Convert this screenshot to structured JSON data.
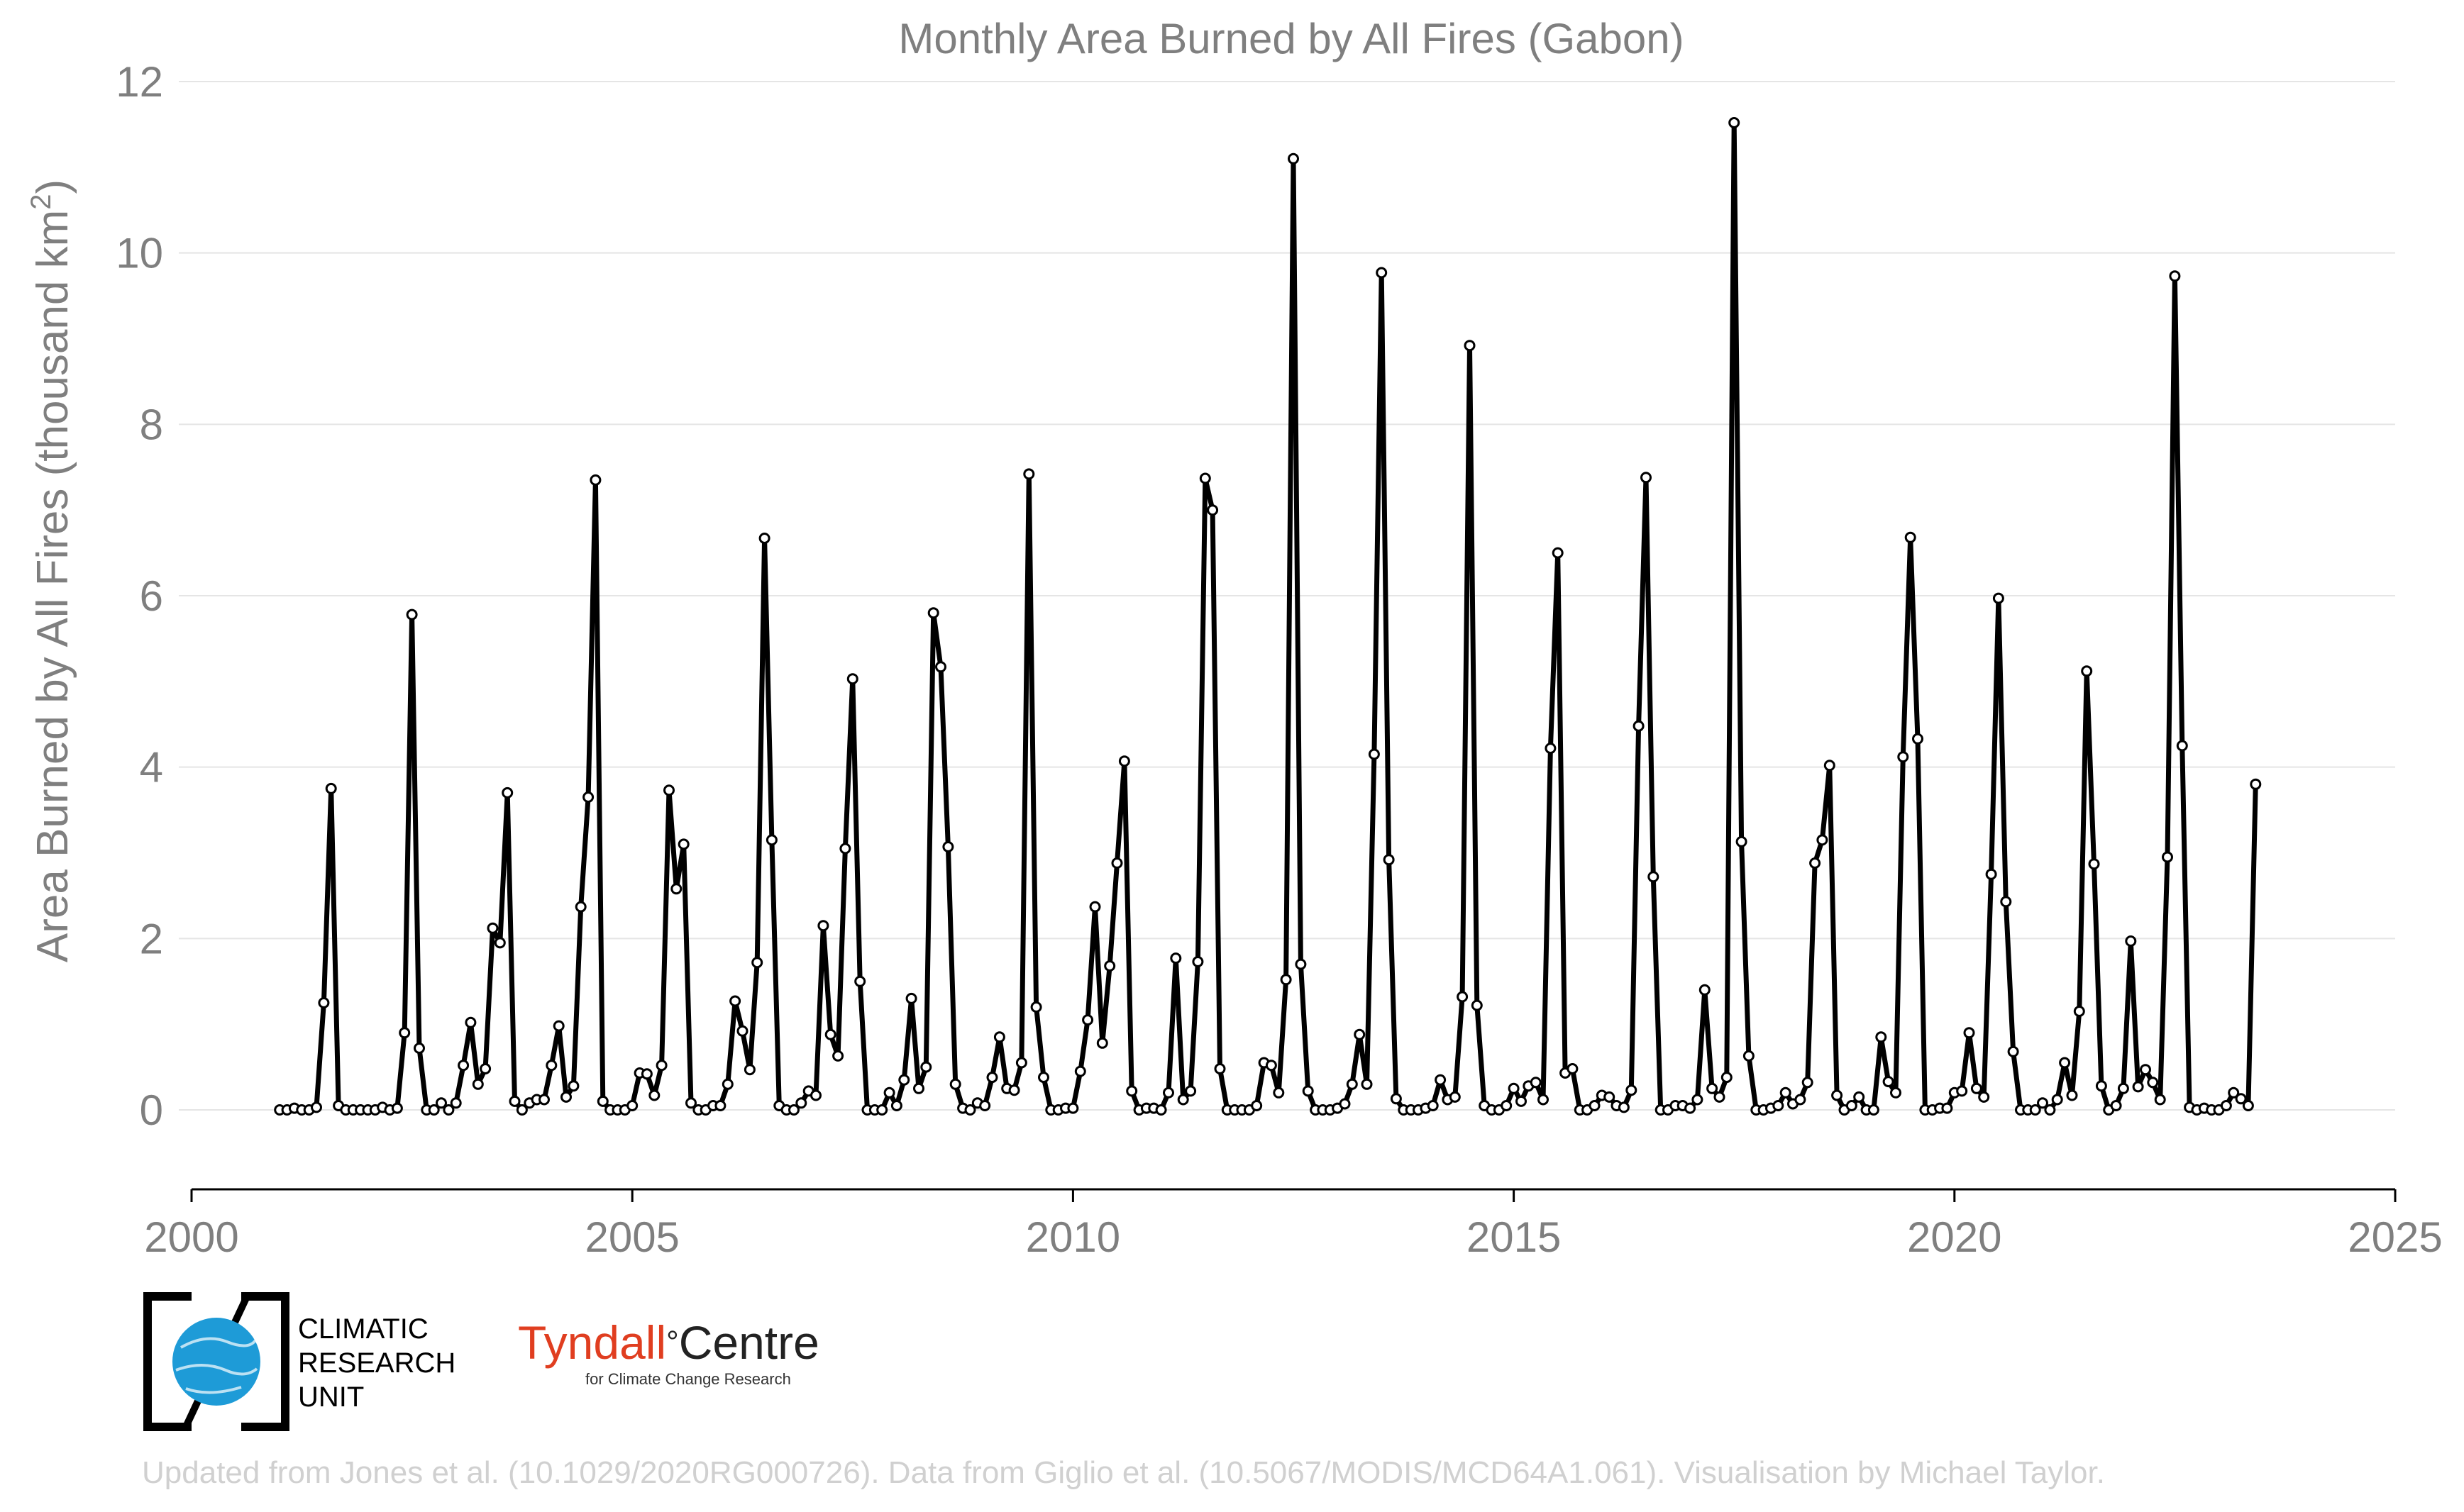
{
  "chart_data": {
    "type": "line",
    "title": "Monthly Area Burned by All Fires (Gabon)",
    "ylabel_main": "Area Burned by All Fires (thousand km",
    "ylabel_sup": "2",
    "ylabel_close": ")",
    "xlabel": "",
    "xlim": [
      2000,
      2025
    ],
    "ylim": [
      -0.9,
      12
    ],
    "xticks": [
      "2000",
      "2005",
      "2010",
      "2015",
      "2020",
      "2025"
    ],
    "yticks": [
      "0",
      "2",
      "4",
      "6",
      "8",
      "10",
      "12"
    ],
    "grid": true,
    "series": [
      {
        "start": "2001-01",
        "frequency": "monthly",
        "values": [
          0.0,
          0.0,
          0.02,
          0.0,
          0.0,
          0.03,
          1.25,
          3.75,
          0.05,
          0.0,
          0.0,
          0.0,
          0.0,
          0.0,
          0.03,
          0.0,
          0.02,
          0.9,
          5.78,
          0.72,
          0.0,
          0.0,
          0.08,
          0.0,
          0.08,
          0.52,
          1.02,
          0.3,
          0.48,
          2.12,
          1.95,
          3.7,
          0.1,
          0.0,
          0.08,
          0.12,
          0.12,
          0.52,
          0.98,
          0.15,
          0.28,
          2.37,
          3.65,
          7.35,
          0.1,
          0.0,
          0.0,
          0.0,
          0.05,
          0.43,
          0.42,
          0.17,
          0.52,
          3.73,
          2.58,
          3.1,
          0.08,
          0.0,
          0.0,
          0.05,
          0.05,
          0.3,
          1.27,
          0.92,
          0.47,
          1.72,
          6.67,
          3.15,
          0.05,
          0.0,
          0.0,
          0.08,
          0.22,
          0.17,
          2.15,
          0.88,
          0.63,
          3.05,
          5.03,
          1.5,
          0.0,
          0.0,
          0.0,
          0.2,
          0.05,
          0.35,
          1.3,
          0.25,
          0.5,
          5.8,
          5.17,
          3.07,
          0.3,
          0.02,
          0.0,
          0.08,
          0.05,
          0.38,
          0.85,
          0.25,
          0.23,
          0.55,
          7.42,
          1.2,
          0.38,
          0.0,
          0.0,
          0.02,
          0.02,
          0.45,
          1.05,
          2.37,
          0.78,
          1.68,
          2.88,
          4.07,
          0.22,
          0.0,
          0.02,
          0.02,
          0.0,
          0.2,
          1.77,
          0.12,
          0.22,
          1.73,
          7.37,
          7.0,
          0.48,
          0.0,
          0.0,
          0.0,
          0.0,
          0.05,
          0.55,
          0.52,
          0.2,
          1.52,
          11.1,
          1.7,
          0.22,
          0.0,
          0.0,
          0.0,
          0.02,
          0.07,
          0.3,
          0.88,
          0.3,
          4.15,
          9.77,
          2.92,
          0.13,
          0.0,
          0.0,
          0.0,
          0.02,
          0.05,
          0.35,
          0.12,
          0.15,
          1.32,
          8.92,
          1.22,
          0.05,
          0.0,
          0.0,
          0.05,
          0.25,
          0.1,
          0.28,
          0.32,
          0.12,
          4.22,
          6.5,
          0.43,
          0.48,
          0.0,
          0.0,
          0.05,
          0.17,
          0.15,
          0.05,
          0.03,
          0.23,
          4.48,
          7.38,
          2.72,
          0.0,
          0.0,
          0.05,
          0.05,
          0.02,
          0.12,
          1.4,
          0.25,
          0.15,
          0.38,
          11.52,
          3.13,
          0.63,
          0.0,
          0.0,
          0.02,
          0.05,
          0.2,
          0.07,
          0.12,
          0.32,
          2.88,
          3.15,
          4.02,
          0.17,
          0.0,
          0.05,
          0.15,
          0.0,
          0.0,
          0.85,
          0.33,
          0.2,
          4.12,
          6.68,
          4.33,
          0.0,
          0.0,
          0.02,
          0.02,
          0.2,
          0.22,
          0.9,
          0.25,
          0.15,
          2.75,
          5.97,
          2.43,
          0.68,
          0.0,
          0.0,
          0.0,
          0.08,
          0.0,
          0.12,
          0.55,
          0.17,
          1.15,
          5.12,
          2.87,
          0.28,
          0.0,
          0.05,
          0.25,
          1.97,
          0.27,
          0.47,
          0.32,
          0.12,
          2.95,
          9.73,
          4.25,
          0.03,
          0.0,
          0.02,
          0.0,
          0.0,
          0.05,
          0.2,
          0.13,
          0.05,
          3.8
        ]
      }
    ]
  },
  "logos": {
    "cru_line1": "CLIMATIC",
    "cru_line2": "RESEARCH",
    "cru_line3": "UNIT",
    "tyndall_word": "Tyndall",
    "tyndall_degree": "°",
    "tyndall_centre": "Centre",
    "tyndall_sub": "for Climate Change Research"
  },
  "footer": "Updated from Jones et al. (10.1029/2020RG000726). Data from Giglio et al. (10.5067/MODIS/MCD64A1.061). Visualisation by Michael Taylor.",
  "colors": {
    "line": "#000000",
    "marker_fill": "#ffffff",
    "grid": "#e5e5e5",
    "text": "#7f7f7f",
    "globe": "#1e9bd7",
    "tyndall_red": "#e03e20"
  }
}
